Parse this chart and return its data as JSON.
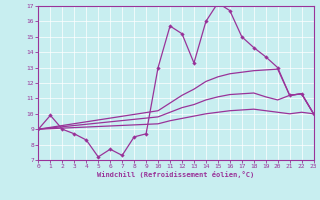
{
  "xlabel": "Windchill (Refroidissement éolien,°C)",
  "background_color": "#c8eef0",
  "line_color": "#993399",
  "xlim": [
    0,
    23
  ],
  "ylim": [
    7,
    17
  ],
  "xticks": [
    0,
    1,
    2,
    3,
    4,
    5,
    6,
    7,
    8,
    9,
    10,
    11,
    12,
    13,
    14,
    15,
    16,
    17,
    18,
    19,
    20,
    21,
    22,
    23
  ],
  "yticks": [
    7,
    8,
    9,
    10,
    11,
    12,
    13,
    14,
    15,
    16,
    17
  ],
  "curve_top": {
    "x": [
      0,
      1,
      2,
      3,
      4,
      5,
      6,
      7,
      8,
      9,
      10,
      11,
      12,
      13,
      14,
      15,
      16,
      17,
      18,
      19,
      20,
      21,
      22,
      23
    ],
    "y": [
      9.0,
      9.9,
      9.0,
      8.7,
      8.3,
      7.2,
      7.7,
      7.3,
      8.5,
      8.7,
      13.0,
      15.7,
      15.2,
      13.3,
      16.0,
      17.2,
      16.7,
      15.0,
      14.3,
      13.7,
      13.0,
      11.2,
      11.3,
      10.0
    ]
  },
  "curve_upper": {
    "x": [
      0,
      10,
      11,
      12,
      13,
      14,
      15,
      16,
      17,
      18,
      19,
      20,
      21,
      22,
      23
    ],
    "y": [
      9.0,
      10.2,
      10.7,
      11.2,
      11.6,
      12.1,
      12.4,
      12.6,
      12.7,
      12.8,
      12.85,
      12.9,
      11.2,
      11.3,
      10.0
    ]
  },
  "curve_mid": {
    "x": [
      0,
      10,
      11,
      12,
      13,
      14,
      15,
      16,
      17,
      18,
      19,
      20,
      21,
      22,
      23
    ],
    "y": [
      9.0,
      9.8,
      10.1,
      10.4,
      10.6,
      10.9,
      11.1,
      11.25,
      11.3,
      11.35,
      11.1,
      10.9,
      11.2,
      11.3,
      10.0
    ]
  },
  "curve_lower": {
    "x": [
      0,
      10,
      11,
      12,
      13,
      14,
      15,
      16,
      17,
      18,
      19,
      20,
      21,
      22,
      23
    ],
    "y": [
      9.0,
      9.35,
      9.55,
      9.7,
      9.85,
      10.0,
      10.1,
      10.2,
      10.25,
      10.3,
      10.2,
      10.1,
      10.0,
      10.1,
      10.0
    ]
  }
}
